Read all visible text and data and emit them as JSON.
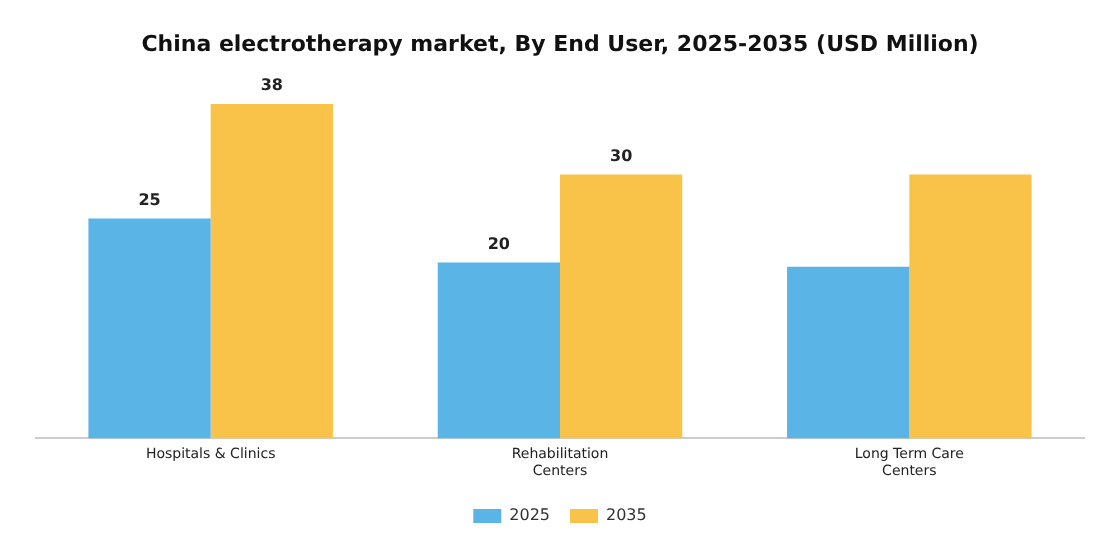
{
  "chart_data": {
    "type": "bar",
    "title": "China electrotherapy market, By End User, 2025-2035 (USD Million)",
    "categories": [
      "Hospitals & Clinics",
      "Rehabilitation Centers",
      "Long Term Care Centers"
    ],
    "series": [
      {
        "name": "2025",
        "color": "#5ab4e5",
        "values": [
          25,
          20,
          19.5
        ],
        "value_labels": [
          "25",
          "20",
          null
        ]
      },
      {
        "name": "2035",
        "color": "#f9c34a",
        "values": [
          38,
          30,
          30
        ],
        "value_labels": [
          "38",
          "30",
          null
        ]
      }
    ],
    "legend": "bottom",
    "grid": false
  }
}
